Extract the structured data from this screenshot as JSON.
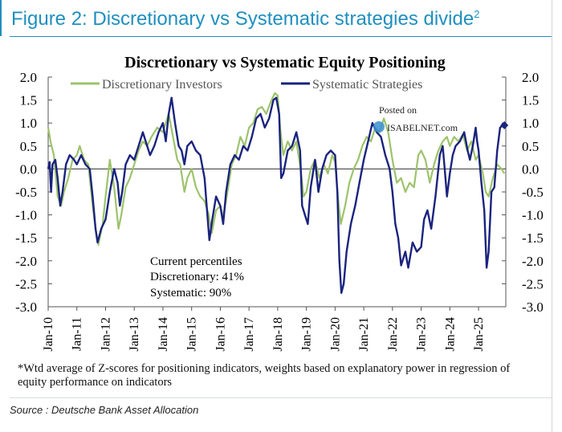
{
  "figure": {
    "title": "Figure 2: Discretionary vs Systematic strategies divide",
    "title_sup": "2",
    "footnote": "*Wtd average of Z-scores for positioning indicators, weights based on explanatory power in regression of equity performance on indicators",
    "source": "Source : Deutsche Bank Asset Allocation"
  },
  "watermark": {
    "line1": "Posted on",
    "line2": "ISABELNET.com"
  },
  "colors": {
    "discretionary": "#9dc36b",
    "systematic": "#1a237e",
    "title_blue": "#1f8fbf"
  },
  "chart_data": {
    "type": "line",
    "title": "Discretionary  vs Systematic Equity Positioning",
    "ylim": [
      -3.0,
      2.0
    ],
    "y_ticks": [
      "2.0",
      "1.5",
      "1.0",
      "0.5",
      "0.0",
      "-0.5",
      "-1.0",
      "-1.5",
      "-2.0",
      "-2.5",
      "-3.0"
    ],
    "x_ticks": [
      "Jan-10",
      "Jan-11",
      "Jan-12",
      "Jan-13",
      "Jan-14",
      "Jan-15",
      "Jan-16",
      "Jan-17",
      "Jan-18",
      "Jan-19",
      "Jan-20",
      "Jan-21",
      "Jan-22",
      "Jan-23",
      "Jan-24",
      "Jan-25"
    ],
    "x_range": [
      2010.0,
      2025.95
    ],
    "annotation": {
      "line1": "Current percentiles",
      "line2": "Discretionary: 41%",
      "line3": "Systematic: 90%"
    },
    "series": [
      {
        "name": "Discretionary Investors",
        "points": [
          [
            2010.0,
            0.9
          ],
          [
            2010.08,
            0.6
          ],
          [
            2010.2,
            0.3
          ],
          [
            2010.33,
            -0.6
          ],
          [
            2010.45,
            -0.8
          ],
          [
            2010.55,
            -0.5
          ],
          [
            2010.7,
            -0.2
          ],
          [
            2010.85,
            0.2
          ],
          [
            2011.0,
            0.3
          ],
          [
            2011.1,
            0.5
          ],
          [
            2011.25,
            0.2
          ],
          [
            2011.4,
            0.1
          ],
          [
            2011.55,
            -0.8
          ],
          [
            2011.65,
            -1.3
          ],
          [
            2011.75,
            -1.65
          ],
          [
            2011.9,
            -1.2
          ],
          [
            2012.0,
            -0.6
          ],
          [
            2012.15,
            0.2
          ],
          [
            2012.3,
            -0.4
          ],
          [
            2012.45,
            -1.3
          ],
          [
            2012.55,
            -1.0
          ],
          [
            2012.7,
            -0.4
          ],
          [
            2012.85,
            -0.2
          ],
          [
            2013.0,
            0.1
          ],
          [
            2013.15,
            0.4
          ],
          [
            2013.3,
            0.6
          ],
          [
            2013.45,
            0.5
          ],
          [
            2013.6,
            0.7
          ],
          [
            2013.8,
            0.9
          ],
          [
            2014.0,
            0.8
          ],
          [
            2014.1,
            1.0
          ],
          [
            2014.2,
            1.2
          ],
          [
            2014.35,
            0.7
          ],
          [
            2014.5,
            0.2
          ],
          [
            2014.6,
            0.1
          ],
          [
            2014.75,
            -0.5
          ],
          [
            2014.85,
            -0.2
          ],
          [
            2015.0,
            0.0
          ],
          [
            2015.15,
            -0.4
          ],
          [
            2015.3,
            -0.6
          ],
          [
            2015.45,
            -0.7
          ],
          [
            2015.6,
            -1.0
          ],
          [
            2015.7,
            -1.4
          ],
          [
            2015.85,
            -0.9
          ],
          [
            2016.0,
            -0.8
          ],
          [
            2016.1,
            -1.05
          ],
          [
            2016.25,
            -0.5
          ],
          [
            2016.4,
            0.1
          ],
          [
            2016.55,
            0.3
          ],
          [
            2016.7,
            0.7
          ],
          [
            2016.85,
            0.5
          ],
          [
            2017.0,
            0.9
          ],
          [
            2017.15,
            1.0
          ],
          [
            2017.3,
            1.3
          ],
          [
            2017.45,
            1.35
          ],
          [
            2017.6,
            1.2
          ],
          [
            2017.75,
            1.45
          ],
          [
            2017.9,
            1.65
          ],
          [
            2018.0,
            1.6
          ],
          [
            2018.1,
            0.8
          ],
          [
            2018.2,
            0.3
          ],
          [
            2018.35,
            0.6
          ],
          [
            2018.5,
            0.4
          ],
          [
            2018.65,
            0.6
          ],
          [
            2018.8,
            0.0
          ],
          [
            2018.9,
            -0.6
          ],
          [
            2019.0,
            -0.5
          ],
          [
            2019.15,
            0.0
          ],
          [
            2019.3,
            0.2
          ],
          [
            2019.45,
            -0.2
          ],
          [
            2019.6,
            0.1
          ],
          [
            2019.75,
            -0.1
          ],
          [
            2019.9,
            0.3
          ],
          [
            2020.0,
            0.15
          ],
          [
            2020.1,
            -0.6
          ],
          [
            2020.2,
            -1.2
          ],
          [
            2020.35,
            -0.8
          ],
          [
            2020.5,
            -0.3
          ],
          [
            2020.65,
            0.0
          ],
          [
            2020.8,
            0.2
          ],
          [
            2020.95,
            0.5
          ],
          [
            2021.1,
            0.7
          ],
          [
            2021.25,
            0.6
          ],
          [
            2021.4,
            0.9
          ],
          [
            2021.55,
            0.8
          ],
          [
            2021.7,
            1.1
          ],
          [
            2021.85,
            0.8
          ],
          [
            2022.0,
            0.2
          ],
          [
            2022.15,
            -0.3
          ],
          [
            2022.3,
            -0.2
          ],
          [
            2022.45,
            -0.5
          ],
          [
            2022.6,
            -0.3
          ],
          [
            2022.75,
            -0.4
          ],
          [
            2022.9,
            0.3
          ],
          [
            2023.0,
            0.4
          ],
          [
            2023.15,
            0.2
          ],
          [
            2023.3,
            -0.3
          ],
          [
            2023.45,
            0.1
          ],
          [
            2023.6,
            0.4
          ],
          [
            2023.75,
            0.6
          ],
          [
            2023.9,
            0.7
          ],
          [
            2024.0,
            0.5
          ],
          [
            2024.15,
            0.7
          ],
          [
            2024.3,
            0.6
          ],
          [
            2024.45,
            0.75
          ],
          [
            2024.6,
            0.4
          ],
          [
            2024.75,
            0.6
          ],
          [
            2024.9,
            0.2
          ],
          [
            2025.0,
            0.3
          ],
          [
            2025.15,
            -0.1
          ],
          [
            2025.25,
            -0.5
          ],
          [
            2025.35,
            -0.6
          ],
          [
            2025.5,
            -0.2
          ],
          [
            2025.65,
            0.1
          ],
          [
            2025.8,
            0.0
          ],
          [
            2025.9,
            -0.1
          ]
        ]
      },
      {
        "name": "Systematic Strategies",
        "points": [
          [
            2010.0,
            0.0
          ],
          [
            2010.05,
            0.15
          ],
          [
            2010.1,
            -0.5
          ],
          [
            2010.15,
            0.1
          ],
          [
            2010.25,
            0.2
          ],
          [
            2010.33,
            -0.2
          ],
          [
            2010.42,
            -0.8
          ],
          [
            2010.5,
            -0.5
          ],
          [
            2010.62,
            0.1
          ],
          [
            2010.75,
            0.3
          ],
          [
            2010.9,
            0.2
          ],
          [
            2011.0,
            0.1
          ],
          [
            2011.15,
            0.3
          ],
          [
            2011.3,
            0.1
          ],
          [
            2011.45,
            0.0
          ],
          [
            2011.55,
            -0.6
          ],
          [
            2011.65,
            -1.3
          ],
          [
            2011.72,
            -1.6
          ],
          [
            2011.85,
            -1.3
          ],
          [
            2012.0,
            -1.1
          ],
          [
            2012.15,
            -0.5
          ],
          [
            2012.3,
            0.0
          ],
          [
            2012.42,
            -0.3
          ],
          [
            2012.5,
            -0.8
          ],
          [
            2012.58,
            -0.5
          ],
          [
            2012.7,
            0.1
          ],
          [
            2012.85,
            0.3
          ],
          [
            2013.0,
            0.2
          ],
          [
            2013.15,
            0.5
          ],
          [
            2013.3,
            0.8
          ],
          [
            2013.4,
            0.6
          ],
          [
            2013.55,
            0.3
          ],
          [
            2013.7,
            0.5
          ],
          [
            2013.85,
            0.8
          ],
          [
            2014.0,
            1.0
          ],
          [
            2014.1,
            0.6
          ],
          [
            2014.2,
            1.2
          ],
          [
            2014.3,
            1.55
          ],
          [
            2014.42,
            1.0
          ],
          [
            2014.55,
            0.5
          ],
          [
            2014.65,
            0.4
          ],
          [
            2014.75,
            0.1
          ],
          [
            2014.85,
            0.5
          ],
          [
            2015.0,
            0.6
          ],
          [
            2015.15,
            0.4
          ],
          [
            2015.3,
            0.3
          ],
          [
            2015.45,
            -0.2
          ],
          [
            2015.55,
            -1.0
          ],
          [
            2015.62,
            -1.55
          ],
          [
            2015.72,
            -1.1
          ],
          [
            2015.85,
            -0.6
          ],
          [
            2016.0,
            -0.8
          ],
          [
            2016.1,
            -1.2
          ],
          [
            2016.2,
            -0.5
          ],
          [
            2016.35,
            0.1
          ],
          [
            2016.5,
            0.3
          ],
          [
            2016.65,
            0.2
          ],
          [
            2016.8,
            0.5
          ],
          [
            2016.95,
            0.4
          ],
          [
            2017.1,
            0.7
          ],
          [
            2017.25,
            1.1
          ],
          [
            2017.4,
            1.2
          ],
          [
            2017.55,
            0.9
          ],
          [
            2017.7,
            1.1
          ],
          [
            2017.85,
            1.5
          ],
          [
            2017.95,
            1.55
          ],
          [
            2018.05,
            1.2
          ],
          [
            2018.12,
            -0.2
          ],
          [
            2018.2,
            -0.1
          ],
          [
            2018.35,
            0.4
          ],
          [
            2018.5,
            0.5
          ],
          [
            2018.65,
            0.8
          ],
          [
            2018.78,
            0.4
          ],
          [
            2018.85,
            -0.8
          ],
          [
            2018.95,
            -1.0
          ],
          [
            2019.05,
            -1.2
          ],
          [
            2019.15,
            -0.4
          ],
          [
            2019.3,
            0.2
          ],
          [
            2019.42,
            -0.5
          ],
          [
            2019.55,
            0.0
          ],
          [
            2019.7,
            0.3
          ],
          [
            2019.85,
            0.4
          ],
          [
            2020.0,
            0.3
          ],
          [
            2020.08,
            -0.5
          ],
          [
            2020.15,
            -2.0
          ],
          [
            2020.22,
            -2.7
          ],
          [
            2020.3,
            -2.5
          ],
          [
            2020.4,
            -1.8
          ],
          [
            2020.55,
            -1.2
          ],
          [
            2020.7,
            -0.8
          ],
          [
            2020.85,
            -0.3
          ],
          [
            2021.0,
            0.2
          ],
          [
            2021.15,
            0.6
          ],
          [
            2021.3,
            1.0
          ],
          [
            2021.45,
            0.8
          ],
          [
            2021.6,
            0.7
          ],
          [
            2021.75,
            0.3
          ],
          [
            2021.9,
            0.0
          ],
          [
            2022.0,
            -0.5
          ],
          [
            2022.1,
            -1.2
          ],
          [
            2022.2,
            -1.5
          ],
          [
            2022.3,
            -2.1
          ],
          [
            2022.45,
            -1.8
          ],
          [
            2022.55,
            -2.15
          ],
          [
            2022.7,
            -1.6
          ],
          [
            2022.85,
            -1.8
          ],
          [
            2023.0,
            -1.7
          ],
          [
            2023.1,
            -1.1
          ],
          [
            2023.22,
            -0.9
          ],
          [
            2023.35,
            -1.3
          ],
          [
            2023.5,
            -0.6
          ],
          [
            2023.65,
            0.3
          ],
          [
            2023.75,
            0.5
          ],
          [
            2023.82,
            0.0
          ],
          [
            2023.9,
            -0.6
          ],
          [
            2024.0,
            -0.1
          ],
          [
            2024.1,
            0.3
          ],
          [
            2024.2,
            0.5
          ],
          [
            2024.35,
            0.6
          ],
          [
            2024.5,
            0.8
          ],
          [
            2024.62,
            0.4
          ],
          [
            2024.7,
            0.2
          ],
          [
            2024.8,
            0.5
          ],
          [
            2024.9,
            0.9
          ],
          [
            2024.95,
            0.6
          ],
          [
            2025.0,
            0.4
          ],
          [
            2025.1,
            -0.3
          ],
          [
            2025.2,
            -0.9
          ],
          [
            2025.28,
            -2.15
          ],
          [
            2025.35,
            -1.8
          ],
          [
            2025.45,
            -0.5
          ],
          [
            2025.55,
            -0.4
          ],
          [
            2025.65,
            0.4
          ],
          [
            2025.75,
            0.9
          ],
          [
            2025.85,
            0.95
          ],
          [
            2025.9,
            0.95
          ]
        ]
      }
    ]
  }
}
